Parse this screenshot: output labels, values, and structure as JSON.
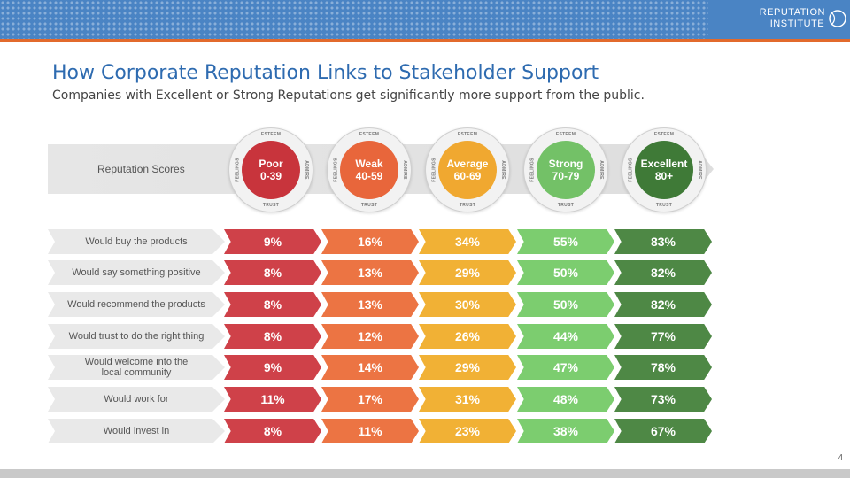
{
  "header": {
    "logo_line1": "REPUTATION",
    "logo_line2": "INSTITUTE",
    "colors": {
      "banner": "#4a84c4",
      "accent_line": "#e26a2c"
    }
  },
  "title": "How Corporate Reputation Links to Stakeholder Support",
  "subtitle": "Companies with Excellent or Strong Reputations get significantly more support from the public.",
  "scores_label": "Reputation Scores",
  "badge_rim": {
    "top": "ESTEEM",
    "bottom": "TRUST",
    "left": "FEELINGS",
    "right": "ADMIRE"
  },
  "categories": [
    {
      "name": "Poor",
      "range": "0-39",
      "color": "#c8343c"
    },
    {
      "name": "Weak",
      "range": "40-59",
      "color": "#e8663b"
    },
    {
      "name": "Average",
      "range": "60-69",
      "color": "#f0a830"
    },
    {
      "name": "Strong",
      "range": "70-79",
      "color": "#73c167"
    },
    {
      "name": "Excellent",
      "range": "80+",
      "color": "#3f7a37"
    }
  ],
  "cell_colors": [
    "#cf4149",
    "#ec7443",
    "#f1b135",
    "#7ccd6f",
    "#4e8845"
  ],
  "rows": [
    {
      "label": "Would buy the products",
      "values": [
        "9%",
        "16%",
        "34%",
        "55%",
        "83%"
      ]
    },
    {
      "label": "Would say something positive",
      "values": [
        "8%",
        "13%",
        "29%",
        "50%",
        "82%"
      ]
    },
    {
      "label": "Would recommend the products",
      "values": [
        "8%",
        "13%",
        "30%",
        "50%",
        "82%"
      ]
    },
    {
      "label": "Would trust to do the right thing",
      "values": [
        "8%",
        "12%",
        "26%",
        "44%",
        "77%"
      ]
    },
    {
      "label": "Would welcome into the local community",
      "values": [
        "9%",
        "14%",
        "29%",
        "47%",
        "78%"
      ]
    },
    {
      "label": "Would work for",
      "values": [
        "11%",
        "17%",
        "31%",
        "48%",
        "73%"
      ]
    },
    {
      "label": "Would invest in",
      "values": [
        "8%",
        "11%",
        "23%",
        "38%",
        "67%"
      ]
    }
  ],
  "page_number": "4"
}
